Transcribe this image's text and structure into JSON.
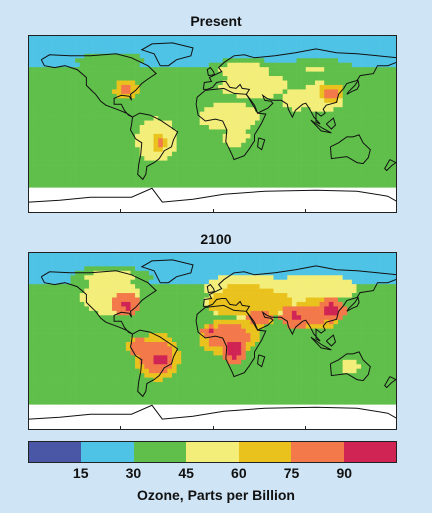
{
  "panels": [
    {
      "title": "Present"
    },
    {
      "title": "2100"
    }
  ],
  "colorbar": {
    "title": "Ozone, Parts per Billion",
    "labels": [
      "15",
      "30",
      "45",
      "60",
      "75",
      "90"
    ],
    "colors": [
      "#4a57a6",
      "#4fc3e6",
      "#5fbf4a",
      "#f3ee7a",
      "#e9c21e",
      "#f3784a",
      "#cf2454"
    ]
  },
  "chart_data": [
    {
      "type": "heatmap",
      "title": "Present",
      "quantity": "Ozone, Parts per Billion",
      "bins": [
        0,
        15,
        30,
        45,
        60,
        75,
        90,
        105
      ],
      "regions_ppb_approx": {
        "oceans": 30,
        "north_america_east": 75,
        "south_america_central": 75,
        "africa_central": 60,
        "south_asia": 60,
        "east_china": 75,
        "australia": 30
      }
    },
    {
      "type": "heatmap",
      "title": "2100",
      "quantity": "Ozone, Parts per Billion",
      "bins": [
        0,
        15,
        30,
        45,
        60,
        75,
        90,
        105
      ],
      "regions_ppb_approx": {
        "oceans": 30,
        "north_america_east": 90,
        "south_america_central": 90,
        "africa_central": 90,
        "south_asia": 90,
        "east_china": 90,
        "australia": 45
      }
    }
  ]
}
